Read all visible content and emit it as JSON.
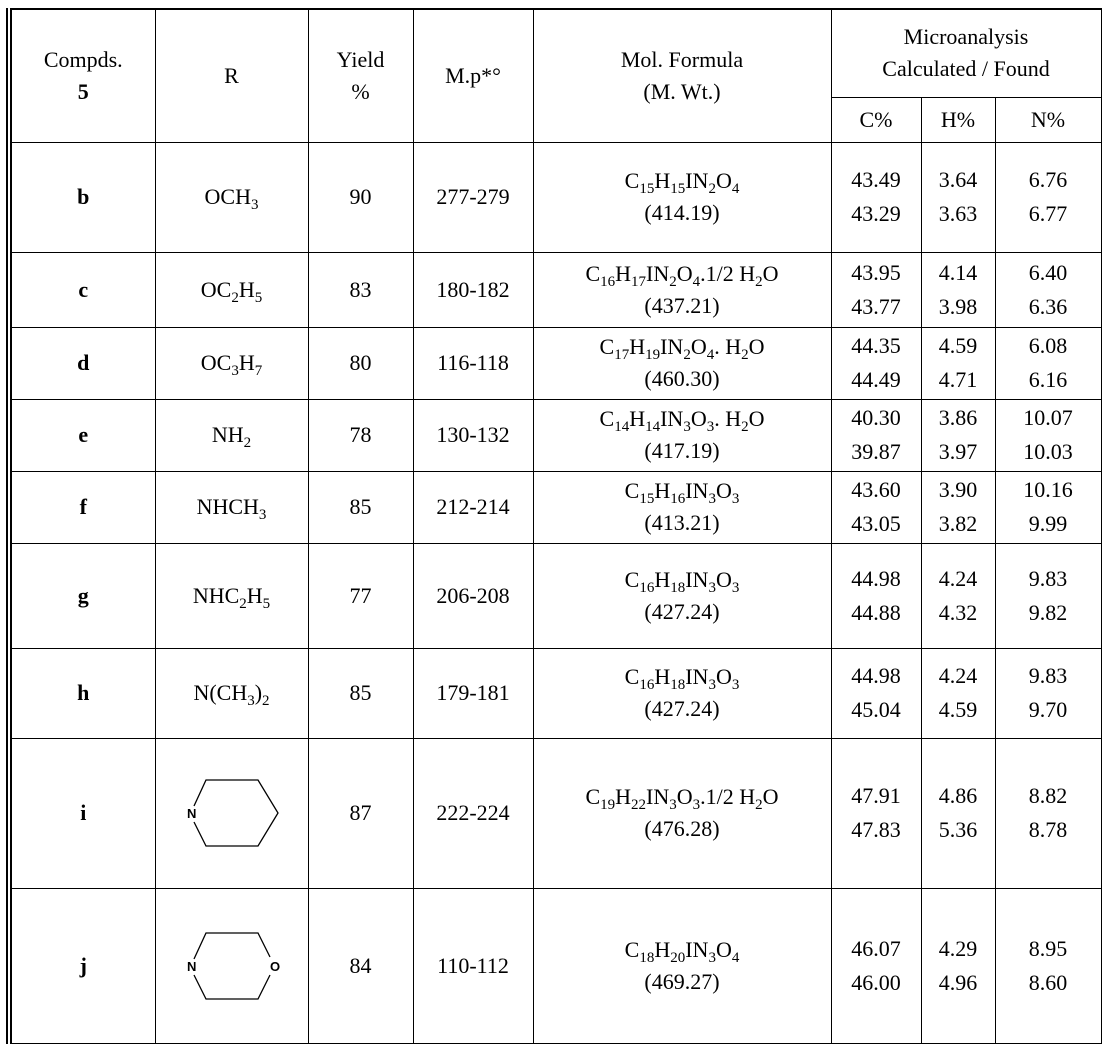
{
  "table": {
    "headers": {
      "compd": "Compds.",
      "compd_num": "5",
      "r": "R",
      "yield": "Yield",
      "yield_unit": "%",
      "mp": "M.p*°",
      "formula": "Mol. Formula",
      "mwt": "(M. Wt.)",
      "micro": "Microanalysis",
      "calc_found": "Calculated / Found",
      "c": "C%",
      "h": "H%",
      "n": "N%"
    },
    "rows": [
      {
        "id": "b",
        "r": [
          "OCH",
          "3"
        ],
        "yield": "90",
        "mp": "277-279",
        "formula": [
          "C",
          "15",
          "H",
          "15",
          "IN",
          "2",
          "O",
          "4"
        ],
        "mw": "(414.19)",
        "calc": [
          "43.49",
          "3.64",
          "6.76"
        ],
        "found": [
          "43.29",
          "3.63",
          "6.77"
        ]
      },
      {
        "id": "c",
        "r": [
          "OC",
          "2",
          "H",
          "5"
        ],
        "yield": "83",
        "mp": "180-182",
        "formula": [
          "C",
          "16",
          "H",
          "17",
          "IN",
          "2",
          "O",
          "4",
          ".1/2 H",
          "2",
          "O"
        ],
        "mw": "(437.21)",
        "calc": [
          "43.95",
          "4.14",
          "6.40"
        ],
        "found": [
          "43.77",
          "3.98",
          "6.36"
        ]
      },
      {
        "id": "d",
        "r": [
          "OC",
          "3",
          "H",
          "7"
        ],
        "yield": "80",
        "mp": "116-118",
        "formula": [
          "C",
          "17",
          "H",
          "19",
          "IN",
          "2",
          "O",
          "4",
          ". H",
          "2",
          "O"
        ],
        "mw": "(460.30)",
        "calc": [
          "44.35",
          "4.59",
          "6.08"
        ],
        "found": [
          "44.49",
          "4.71",
          "6.16"
        ]
      },
      {
        "id": "e",
        "r": [
          "NH",
          "2"
        ],
        "yield": "78",
        "mp": "130-132",
        "formula": [
          "C",
          "14",
          "H",
          "14",
          "IN",
          "3",
          "O",
          "3",
          ". H",
          "2",
          "O"
        ],
        "mw": "(417.19)",
        "calc": [
          "40.30",
          "3.86",
          "10.07"
        ],
        "found": [
          "39.87",
          "3.97",
          "10.03"
        ]
      },
      {
        "id": "f",
        "r": [
          "NHCH",
          "3"
        ],
        "yield": "85",
        "mp": "212-214",
        "formula": [
          "C",
          "15",
          "H",
          "16",
          "IN",
          "3",
          "O",
          "3"
        ],
        "mw": "(413.21)",
        "calc": [
          "43.60",
          "3.90",
          "10.16"
        ],
        "found": [
          "43.05",
          "3.82",
          "9.99"
        ]
      },
      {
        "id": "g",
        "r": [
          "NHC",
          "2",
          "H",
          "5"
        ],
        "yield": "77",
        "mp": "206-208",
        "formula": [
          "C",
          "16",
          "H",
          "18",
          "IN",
          "3",
          "O",
          "3"
        ],
        "mw": "(427.24)",
        "calc": [
          "44.98",
          "4.24",
          "9.83"
        ],
        "found": [
          "44.88",
          "4.32",
          "9.82"
        ]
      },
      {
        "id": "h",
        "r": [
          "N(CH",
          "3",
          ")",
          "2"
        ],
        "yield": "85",
        "mp": "179-181",
        "formula": [
          "C",
          "16",
          "H",
          "18",
          "IN",
          "3",
          "O",
          "3"
        ],
        "mw": "(427.24)",
        "calc": [
          "44.98",
          "4.24",
          "9.83"
        ],
        "found": [
          "45.04",
          "4.59",
          "9.70"
        ]
      },
      {
        "id": "i",
        "ring": {
          "type": "piperidine",
          "labels": [
            "N"
          ]
        },
        "yield": "87",
        "mp": "222-224",
        "formula": [
          "C",
          "19",
          "H",
          "22",
          "IN",
          "3",
          "O",
          "3",
          ".1/2 H",
          "2",
          "O"
        ],
        "mw": "(476.28)",
        "calc": [
          "47.91",
          "4.86",
          "8.82"
        ],
        "found": [
          "47.83",
          "5.36",
          "8.78"
        ]
      },
      {
        "id": "j",
        "ring": {
          "type": "morpholine",
          "labels": [
            "N",
            "O"
          ]
        },
        "yield": "84",
        "mp": "110-112",
        "formula": [
          "C",
          "18",
          "H",
          "20",
          "IN",
          "3",
          "O",
          "4"
        ],
        "mw": "(469.27)",
        "calc": [
          "46.07",
          "4.29",
          "8.95"
        ],
        "found": [
          "46.00",
          "4.96",
          "8.60"
        ]
      }
    ]
  }
}
